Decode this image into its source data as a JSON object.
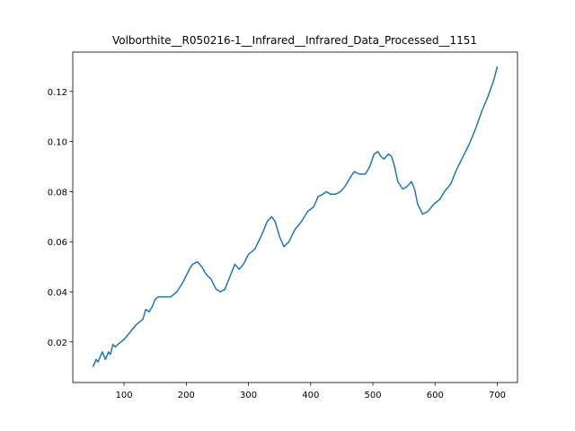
{
  "chart_data": {
    "type": "line",
    "title": "Volborthite__R050216-1__Infrared__Infrared_Data_Processed__1151",
    "x": [
      50,
      55,
      58,
      65,
      70,
      75,
      78,
      82,
      86,
      90,
      100,
      110,
      120,
      130,
      135,
      140,
      145,
      150,
      155,
      165,
      175,
      185,
      195,
      205,
      210,
      218,
      225,
      232,
      240,
      248,
      255,
      262,
      270,
      278,
      285,
      292,
      300,
      310,
      320,
      330,
      337,
      343,
      350,
      357,
      365,
      375,
      385,
      395,
      405,
      412,
      420,
      425,
      432,
      440,
      448,
      455,
      462,
      470,
      478,
      488,
      495,
      502,
      508,
      513,
      518,
      525,
      530,
      535,
      540,
      548,
      555,
      562,
      567,
      572,
      580,
      588,
      598,
      608,
      615,
      625,
      635,
      645,
      655,
      665,
      675,
      685,
      695,
      700
    ],
    "series": [
      {
        "color": "#1f77b4",
        "values": [
          0.01,
          0.013,
          0.012,
          0.016,
          0.013,
          0.016,
          0.015,
          0.019,
          0.018,
          0.019,
          0.021,
          0.024,
          0.027,
          0.029,
          0.033,
          0.032,
          0.034,
          0.037,
          0.038,
          0.038,
          0.038,
          0.04,
          0.044,
          0.049,
          0.051,
          0.052,
          0.05,
          0.047,
          0.045,
          0.041,
          0.04,
          0.041,
          0.046,
          0.051,
          0.049,
          0.051,
          0.055,
          0.057,
          0.062,
          0.068,
          0.07,
          0.068,
          0.062,
          0.058,
          0.06,
          0.065,
          0.068,
          0.072,
          0.074,
          0.078,
          0.079,
          0.08,
          0.079,
          0.079,
          0.08,
          0.082,
          0.085,
          0.088,
          0.087,
          0.087,
          0.09,
          0.095,
          0.096,
          0.094,
          0.093,
          0.095,
          0.094,
          0.09,
          0.084,
          0.081,
          0.082,
          0.084,
          0.081,
          0.075,
          0.071,
          0.072,
          0.075,
          0.077,
          0.08,
          0.083,
          0.089,
          0.094,
          0.099,
          0.105,
          0.112,
          0.118,
          0.125,
          0.13
        ]
      }
    ],
    "xlim": [
      17.5,
      732.5
    ],
    "xticks": [
      100,
      200,
      300,
      400,
      500,
      600,
      700
    ],
    "ylim": [
      0.0038,
      0.1357
    ],
    "yticks": [
      0.02,
      0.04,
      0.06,
      0.08,
      {
        "value": 0.1,
        "label": "0.10"
      },
      0.12
    ]
  }
}
